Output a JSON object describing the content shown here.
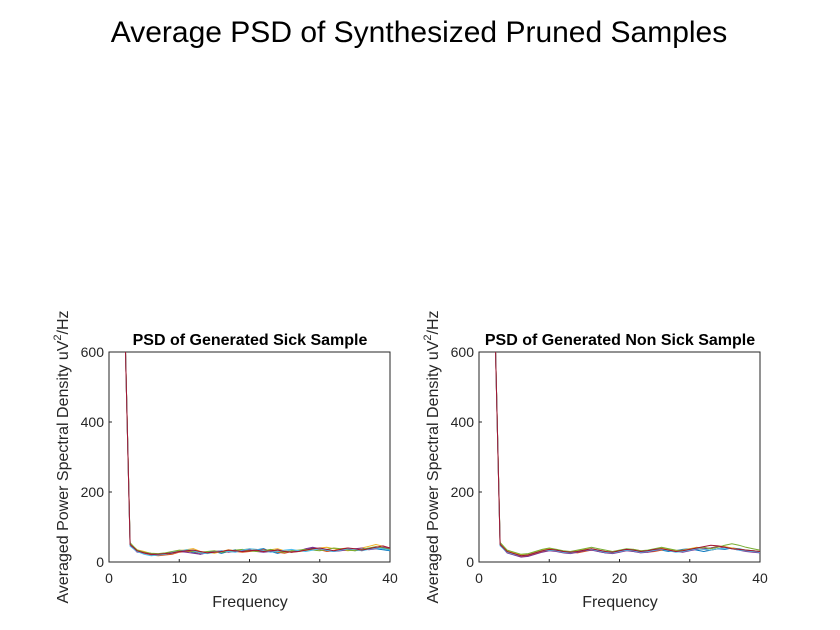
{
  "figure": {
    "suptitle": "Average PSD of Synthesized Pruned Samples"
  },
  "chart_data": [
    {
      "type": "line",
      "title": "PSD of Generated Sick Sample",
      "xlabel": "Frequency",
      "ylabel_main": "Averaged Power Spectral Density uV",
      "ylabel_sup": "2",
      "ylabel_tail": "/Hz",
      "xlim": [
        0,
        40
      ],
      "ylim": [
        0,
        600
      ],
      "xticks": [
        0,
        10,
        20,
        30,
        40
      ],
      "yticks": [
        0,
        200,
        400,
        600
      ],
      "x": [
        2,
        3,
        4,
        5,
        6,
        7,
        8,
        9,
        10,
        11,
        12,
        13,
        14,
        15,
        16,
        17,
        18,
        19,
        20,
        21,
        22,
        23,
        24,
        25,
        26,
        27,
        28,
        29,
        30,
        31,
        32,
        33,
        34,
        35,
        36,
        37,
        38,
        39,
        40
      ],
      "series": [
        {
          "color": "#0072BD",
          "values": [
            900,
            55,
            32,
            28,
            22,
            20,
            22,
            25,
            30,
            32,
            28,
            22,
            28,
            30,
            25,
            30,
            35,
            30,
            32,
            35,
            38,
            30,
            25,
            30,
            32,
            30,
            35,
            40,
            38,
            32,
            30,
            35,
            38,
            32,
            35,
            40,
            38,
            35,
            32
          ]
        },
        {
          "color": "#D95319",
          "values": [
            900,
            50,
            30,
            25,
            20,
            18,
            20,
            22,
            28,
            30,
            30,
            25,
            25,
            28,
            30,
            32,
            30,
            28,
            30,
            32,
            35,
            32,
            28,
            25,
            30,
            32,
            35,
            38,
            35,
            30,
            32,
            38,
            40,
            35,
            32,
            38,
            42,
            40,
            35
          ]
        },
        {
          "color": "#EDB120",
          "values": [
            900,
            52,
            35,
            30,
            24,
            22,
            25,
            28,
            32,
            35,
            38,
            30,
            28,
            25,
            30,
            35,
            32,
            35,
            38,
            35,
            30,
            35,
            38,
            32,
            28,
            30,
            32,
            35,
            40,
            42,
            38,
            35,
            32,
            35,
            40,
            45,
            50,
            45,
            40
          ]
        },
        {
          "color": "#7E2F8E",
          "values": [
            900,
            48,
            28,
            26,
            22,
            20,
            24,
            26,
            30,
            28,
            25,
            22,
            26,
            30,
            32,
            28,
            30,
            32,
            35,
            30,
            28,
            30,
            35,
            30,
            28,
            32,
            38,
            42,
            38,
            35,
            30,
            32,
            35,
            38,
            40,
            35,
            38,
            42,
            38
          ]
        },
        {
          "color": "#77AC30",
          "values": [
            900,
            55,
            34,
            28,
            25,
            24,
            26,
            30,
            34,
            32,
            30,
            28,
            30,
            32,
            28,
            30,
            34,
            36,
            32,
            30,
            32,
            36,
            30,
            28,
            32,
            34,
            36,
            34,
            32,
            36,
            40,
            38,
            34,
            32,
            36,
            40,
            44,
            40,
            36
          ]
        },
        {
          "color": "#4DBEEE",
          "values": [
            900,
            45,
            30,
            22,
            18,
            20,
            22,
            28,
            30,
            35,
            32,
            26,
            24,
            28,
            32,
            30,
            28,
            34,
            38,
            36,
            32,
            28,
            30,
            34,
            36,
            32,
            30,
            34,
            38,
            34,
            30,
            34,
            38,
            36,
            32,
            36,
            40,
            38,
            34
          ]
        },
        {
          "color": "#A2142F",
          "values": [
            900,
            50,
            32,
            26,
            22,
            22,
            24,
            26,
            30,
            32,
            34,
            30,
            26,
            28,
            30,
            34,
            32,
            30,
            32,
            34,
            30,
            32,
            34,
            30,
            28,
            30,
            34,
            38,
            40,
            36,
            32,
            36,
            40,
            38,
            34,
            38,
            42,
            46,
            40
          ]
        }
      ]
    },
    {
      "type": "line",
      "title": "PSD of Generated Non Sick Sample",
      "xlabel": "Frequency",
      "ylabel_main": "Averaged Power Spectral Density uV",
      "ylabel_sup": "2",
      "ylabel_tail": "/Hz",
      "xlim": [
        0,
        40
      ],
      "ylim": [
        0,
        600
      ],
      "xticks": [
        0,
        10,
        20,
        30,
        40
      ],
      "yticks": [
        0,
        200,
        400,
        600
      ],
      "x": [
        2,
        3,
        4,
        5,
        6,
        7,
        8,
        9,
        10,
        11,
        12,
        13,
        14,
        15,
        16,
        17,
        18,
        19,
        20,
        21,
        22,
        23,
        24,
        25,
        26,
        27,
        28,
        29,
        30,
        31,
        32,
        33,
        34,
        35,
        36,
        37,
        38,
        39,
        40
      ],
      "series": [
        {
          "color": "#0072BD",
          "values": [
            900,
            55,
            30,
            24,
            18,
            20,
            26,
            32,
            36,
            32,
            28,
            26,
            30,
            34,
            36,
            30,
            26,
            28,
            32,
            34,
            30,
            28,
            32,
            36,
            34,
            30,
            32,
            36,
            38,
            34,
            30,
            34,
            38,
            36,
            40,
            38,
            34,
            32,
            30
          ]
        },
        {
          "color": "#D95319",
          "values": [
            900,
            52,
            28,
            22,
            16,
            18,
            24,
            30,
            34,
            36,
            30,
            28,
            26,
            30,
            34,
            32,
            28,
            26,
            30,
            34,
            36,
            32,
            28,
            30,
            34,
            36,
            32,
            30,
            34,
            38,
            36,
            34,
            38,
            42,
            40,
            36,
            32,
            30,
            28
          ]
        },
        {
          "color": "#EDB120",
          "values": [
            900,
            50,
            32,
            26,
            20,
            22,
            28,
            34,
            38,
            34,
            30,
            28,
            32,
            36,
            38,
            34,
            30,
            28,
            32,
            36,
            34,
            30,
            32,
            36,
            40,
            36,
            32,
            34,
            38,
            42,
            38,
            40,
            46,
            44,
            40,
            36,
            34,
            32,
            30
          ]
        },
        {
          "color": "#7E2F8E",
          "values": [
            900,
            48,
            26,
            20,
            14,
            16,
            22,
            28,
            32,
            30,
            26,
            24,
            28,
            32,
            34,
            30,
            26,
            24,
            28,
            32,
            30,
            26,
            28,
            32,
            36,
            34,
            30,
            28,
            32,
            36,
            38,
            40,
            44,
            42,
            38,
            34,
            30,
            28,
            26
          ]
        },
        {
          "color": "#77AC30",
          "values": [
            900,
            56,
            34,
            28,
            22,
            24,
            30,
            36,
            40,
            36,
            32,
            30,
            34,
            38,
            42,
            38,
            34,
            30,
            34,
            38,
            36,
            32,
            34,
            38,
            42,
            38,
            34,
            32,
            36,
            40,
            42,
            38,
            42,
            48,
            52,
            48,
            42,
            38,
            34
          ]
        },
        {
          "color": "#4DBEEE",
          "values": [
            900,
            46,
            28,
            22,
            18,
            20,
            26,
            32,
            34,
            32,
            28,
            26,
            30,
            34,
            36,
            32,
            28,
            26,
            30,
            34,
            32,
            28,
            30,
            34,
            36,
            32,
            28,
            30,
            34,
            38,
            36,
            34,
            38,
            40,
            38,
            34,
            32,
            30,
            28
          ]
        },
        {
          "color": "#A2142F",
          "values": [
            900,
            50,
            30,
            24,
            18,
            20,
            26,
            32,
            36,
            34,
            30,
            28,
            30,
            34,
            38,
            34,
            30,
            28,
            32,
            36,
            34,
            30,
            32,
            36,
            38,
            34,
            30,
            32,
            36,
            40,
            44,
            48,
            46,
            42,
            38,
            36,
            34,
            32,
            30
          ]
        }
      ]
    }
  ]
}
